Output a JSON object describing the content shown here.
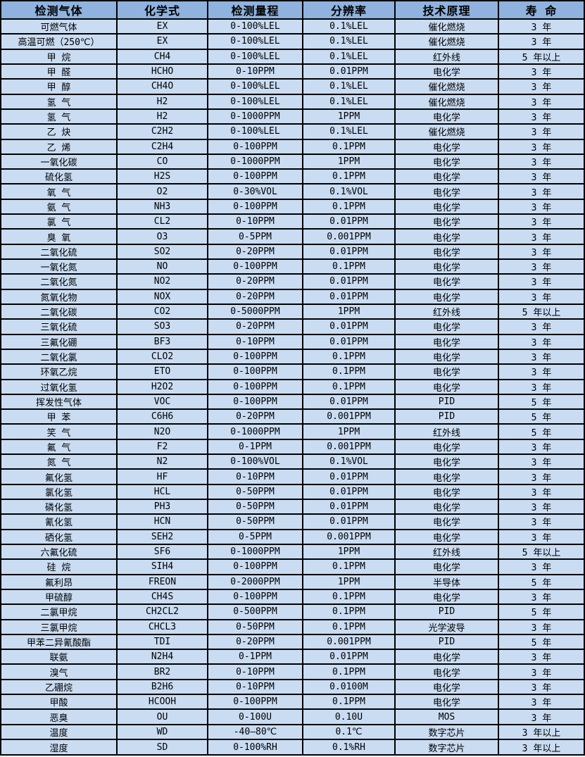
{
  "colors": {
    "header_bg": "#8FB2DE",
    "row_bg": "#C9DCF2",
    "border": "#000000",
    "text": "#000000"
  },
  "chart_data": {
    "type": "table",
    "title": "",
    "columns": [
      "检测气体",
      "化学式",
      "检测量程",
      "分辨率",
      "技术原理",
      "寿 命"
    ],
    "rows": [
      [
        "可燃气体",
        "EX",
        "0-100%LEL",
        "0.1%LEL",
        "催化燃烧",
        "3 年"
      ],
      [
        "高温可燃（250℃）",
        "EX",
        "0-100%LEL",
        "0.1%LEL",
        "催化燃烧",
        "3 年"
      ],
      [
        "甲 烷",
        "CH4",
        "0-100%LEL",
        "0.1%LEL",
        "红外线",
        "5 年以上"
      ],
      [
        "甲 醛",
        "HCHO",
        "0-10PPM",
        "0.01PPM",
        "电化学",
        "3 年"
      ],
      [
        "甲 醇",
        "CH4O",
        "0-100%LEL",
        "0.1%LEL",
        "催化燃烧",
        "3 年"
      ],
      [
        "氢 气",
        "H2",
        "0-100%LEL",
        "0.1%LEL",
        "催化燃烧",
        "3 年"
      ],
      [
        "氢 气",
        "H2",
        "0-1000PPM",
        "1PPM",
        "电化学",
        "3 年"
      ],
      [
        "乙 炔",
        "C2H2",
        "0-100%LEL",
        "0.1%LEL",
        "催化燃烧",
        "3 年"
      ],
      [
        "乙 烯",
        "C2H4",
        "0-100PPM",
        "0.1PPM",
        "电化学",
        "3 年"
      ],
      [
        "一氧化碳",
        "CO",
        "0-1000PPM",
        "1PPM",
        "电化学",
        "3 年"
      ],
      [
        "硫化氢",
        "H2S",
        "0-100PPM",
        "0.1PPM",
        "电化学",
        "3 年"
      ],
      [
        "氧 气",
        "O2",
        "0-30%VOL",
        "0.1%VOL",
        "电化学",
        "3 年"
      ],
      [
        "氨 气",
        "NH3",
        "0-100PPM",
        "0.1PPM",
        "电化学",
        "3 年"
      ],
      [
        "氯 气",
        "CL2",
        "0-10PPM",
        "0.01PPM",
        "电化学",
        "3 年"
      ],
      [
        "臭 氧",
        "O3",
        "0-5PPM",
        "0.001PPM",
        "电化学",
        "3 年"
      ],
      [
        "二氧化硫",
        "SO2",
        "0-20PPM",
        "0.01PPM",
        "电化学",
        "3 年"
      ],
      [
        "一氧化氮",
        "NO",
        "0-100PPM",
        "0.1PPM",
        "电化学",
        "3 年"
      ],
      [
        "二氧化氮",
        "NO2",
        "0-20PPM",
        "0.01PPM",
        "电化学",
        "3 年"
      ],
      [
        "氮氧化物",
        "NOX",
        "0-20PPM",
        "0.01PPM",
        "电化学",
        "3 年"
      ],
      [
        "二氧化碳",
        "CO2",
        "0-5000PPM",
        "1PPM",
        "红外线",
        "5 年以上"
      ],
      [
        "三氧化硫",
        "SO3",
        "0-20PPM",
        "0.01PPM",
        "电化学",
        "3 年"
      ],
      [
        "三氟化硼",
        "BF3",
        "0-10PPM",
        "0.01PPM",
        "电化学",
        "3 年"
      ],
      [
        "二氧化氯",
        "CLO2",
        "0-100PPM",
        "0.1PPM",
        "电化学",
        "3 年"
      ],
      [
        "环氧乙烷",
        "ETO",
        "0-100PPM",
        "0.1PPM",
        "电化学",
        "3 年"
      ],
      [
        "过氧化氢",
        "H2O2",
        "0-100PPM",
        "0.1PPM",
        "电化学",
        "3 年"
      ],
      [
        "挥发性气体",
        "VOC",
        "0-100PPM",
        "0.01PPM",
        "PID",
        "5 年"
      ],
      [
        "甲 苯",
        "C6H6",
        "0-20PPM",
        "0.001PPM",
        "PID",
        "5 年"
      ],
      [
        "笑 气",
        "N2O",
        "0-1000PPM",
        "1PPM",
        "红外线",
        "5 年"
      ],
      [
        "氟 气",
        "F2",
        "0-1PPM",
        "0.001PPM",
        "电化学",
        "3 年"
      ],
      [
        "氮 气",
        "N2",
        "0-100%VOL",
        "0.1%VOL",
        "电化学",
        "3 年"
      ],
      [
        "氟化氢",
        "HF",
        "0-10PPM",
        "0.01PPM",
        "电化学",
        "3 年"
      ],
      [
        "氯化氢",
        "HCL",
        "0-50PPM",
        "0.01PPM",
        "电化学",
        "3 年"
      ],
      [
        "磷化氢",
        "PH3",
        "0-50PPM",
        "0.01PPM",
        "电化学",
        "3 年"
      ],
      [
        "氰化氢",
        "HCN",
        "0-50PPM",
        "0.01PPM",
        "电化学",
        "3 年"
      ],
      [
        "硒化氢",
        "SEH2",
        "0-5PPM",
        "0.001PPM",
        "电化学",
        "3 年"
      ],
      [
        "六氟化硫",
        "SF6",
        "0-1000PPM",
        "1PPM",
        "红外线",
        "5 年以上"
      ],
      [
        "硅 烷",
        "SIH4",
        "0-100PPM",
        "0.1PPM",
        "电化学",
        "3 年"
      ],
      [
        "氟利昂",
        "FREON",
        "0-2000PPM",
        "1PPM",
        "半导体",
        "5 年"
      ],
      [
        "甲硫醇",
        "CH4S",
        "0-100PPM",
        "0.1PPM",
        "电化学",
        "3 年"
      ],
      [
        "二氯甲烷",
        "CH2CL2",
        "0-500PPM",
        "0.1PPM",
        "PID",
        "5 年"
      ],
      [
        "三氯甲烷",
        "CHCL3",
        "0-50PPM",
        "0.1PPM",
        "光学波导",
        "3 年"
      ],
      [
        "甲苯二异氰酸酯",
        "TDI",
        "0-20PPM",
        "0.001PPM",
        "PID",
        "5 年"
      ],
      [
        "联氨",
        "N2H4",
        "0-1PPM",
        "0.01PPM",
        "电化学",
        "3 年"
      ],
      [
        "溴气",
        "BR2",
        "0-10PPM",
        "0.1PPM",
        "电化学",
        "3 年"
      ],
      [
        "乙硼烷",
        "B2H6",
        "0-10PPM",
        "0.0100M",
        "电化学",
        "3 年"
      ],
      [
        "甲酸",
        "HCOOH",
        "0-100PPM",
        "0.1PPM",
        "电化学",
        "3 年"
      ],
      [
        "恶臭",
        "OU",
        "0-100U",
        "0.10U",
        "MOS",
        "3 年"
      ],
      [
        "温度",
        "WD",
        "-40—80℃",
        "0.1℃",
        "数字芯片",
        "3 年以上"
      ],
      [
        "湿度",
        "SD",
        "0-100%RH",
        "0.1%RH",
        "数字芯片",
        "3 年以上"
      ]
    ]
  }
}
